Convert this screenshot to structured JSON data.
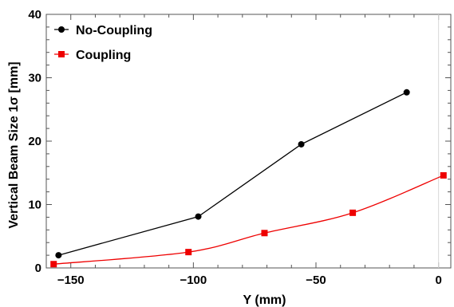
{
  "chart_data": {
    "type": "line",
    "xlabel": "Y (mm)",
    "ylabel": "Vertical Beam Size 1σ [mm]",
    "xlim": [
      -160,
      5
    ],
    "ylim": [
      0,
      40
    ],
    "x_ticks": [
      -150,
      -100,
      -50,
      0
    ],
    "y_ticks": [
      0,
      10,
      20,
      30,
      40
    ],
    "legend_position": "top-left",
    "grid": false,
    "series": [
      {
        "name": "No-Coupling",
        "color": "#000000",
        "marker": "circle",
        "interpolation": "linear",
        "points": [
          [
            -155,
            2.0
          ],
          [
            -98,
            8.1
          ],
          [
            -56,
            19.5
          ],
          [
            -13,
            27.7
          ]
        ]
      },
      {
        "name": "Coupling",
        "color": "#ee0000",
        "marker": "square",
        "interpolation": "smooth",
        "points": [
          [
            -157,
            0.6
          ],
          [
            -102,
            2.5
          ],
          [
            -71,
            5.5
          ],
          [
            -35,
            8.7
          ],
          [
            2,
            14.6
          ]
        ]
      }
    ]
  }
}
